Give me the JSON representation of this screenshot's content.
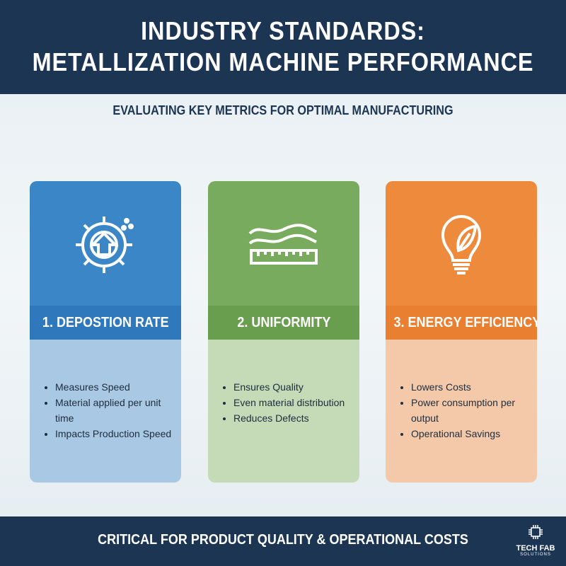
{
  "header": {
    "title_lines": [
      "INDUSTRY STANDARDS:",
      "METALLIZATION MACHINE PERFORMANCE"
    ],
    "subtitle": "EVALUATING KEY METRICS FOR OPTIMAL MANUFACTURING"
  },
  "cards": [
    {
      "title": "1. DEPOSTION RATE",
      "bullets": [
        "Measures Speed",
        "Material applied per unit time",
        "Impacts Production Speed"
      ]
    },
    {
      "title": "2. UNIFORMITY",
      "bullets": [
        "Ensures Quality",
        "Even material distribution",
        "Reduces Defects"
      ]
    },
    {
      "title": "3. ENERGY EFFICIENCY",
      "bullets": [
        "Lowers Costs",
        "Power consumption per output",
        "Operational Savings"
      ]
    }
  ],
  "footer": {
    "text": "CRITICAL FOR PRODUCT QUALITY & OPERATIONAL COSTS",
    "logo_lines": [
      "TECH FAB",
      "SOLUTIONS"
    ]
  }
}
